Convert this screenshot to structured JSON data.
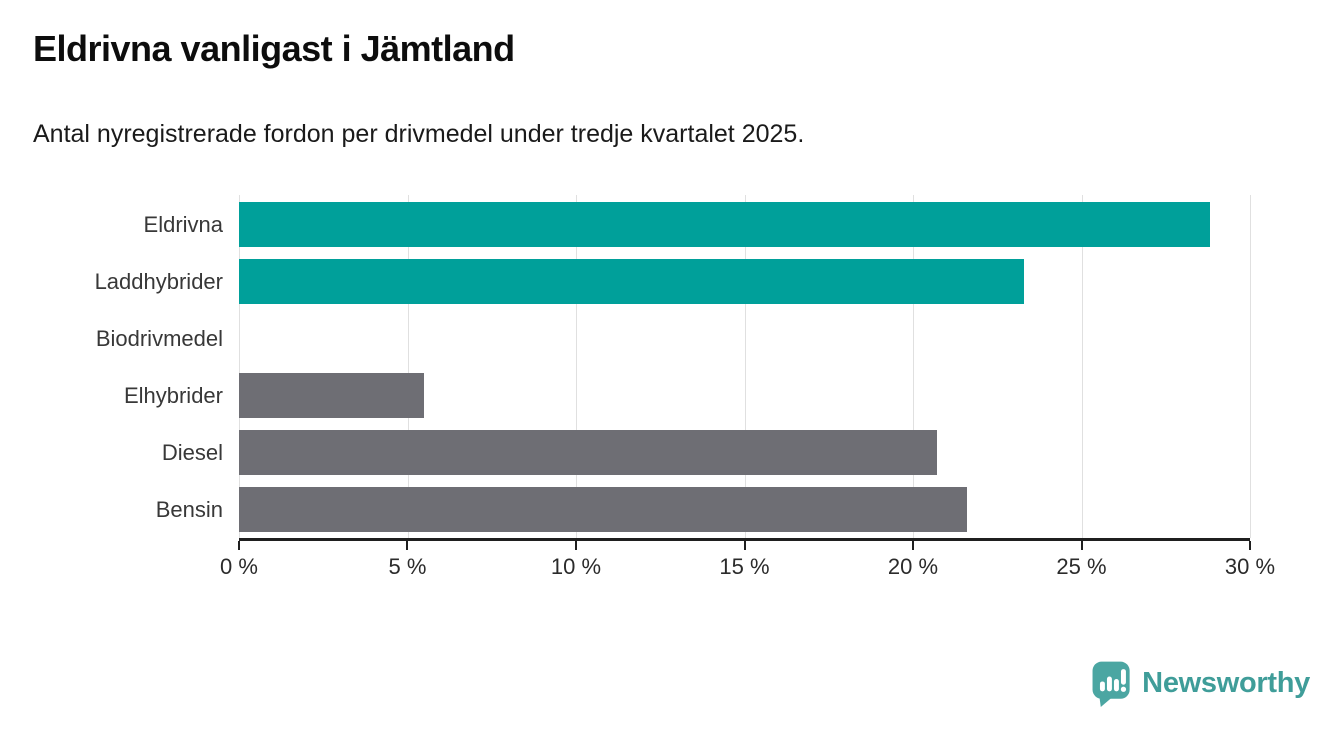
{
  "header": {
    "title": "Eldrivna vanligast i Jämtland",
    "subtitle": "Antal nyregistrerade fordon per drivmedel under tredje kvartalet 2025."
  },
  "chart_data": {
    "type": "bar",
    "orientation": "horizontal",
    "title": "Eldrivna vanligast i Jämtland",
    "subtitle": "Antal nyregistrerade fordon per drivmedel under tredje kvartalet 2025.",
    "categories": [
      "Eldrivna",
      "Laddhybrider",
      "Biodrivmedel",
      "Elhybrider",
      "Diesel",
      "Bensin"
    ],
    "values": [
      28.8,
      23.3,
      0,
      5.5,
      20.7,
      21.6
    ],
    "unit": "%",
    "bar_colors": [
      "#00a09a",
      "#00a09a",
      "#6e6e74",
      "#6e6e74",
      "#6e6e74",
      "#6e6e74"
    ],
    "xlim": [
      0,
      30
    ],
    "x_ticks": [
      0,
      5,
      10,
      15,
      20,
      25,
      30
    ],
    "x_tick_labels": [
      "0 %",
      "5 %",
      "10 %",
      "15 %",
      "20 %",
      "25 %",
      "30 %"
    ],
    "xlabel": "",
    "ylabel": "",
    "grid": true,
    "legend": "none"
  },
  "branding": {
    "logo_text": "Newsworthy",
    "icon": "newsworthy-pin-barchart-icon",
    "icon_color": "#4ba6a2",
    "text_color": "#3f9d99"
  },
  "colors": {
    "accent_teal": "#00a09a",
    "neutral_gray": "#6e6e74",
    "grid": "#e0e0e0",
    "axis": "#1f1f1f",
    "text": "#383838",
    "background": "#ffffff"
  }
}
